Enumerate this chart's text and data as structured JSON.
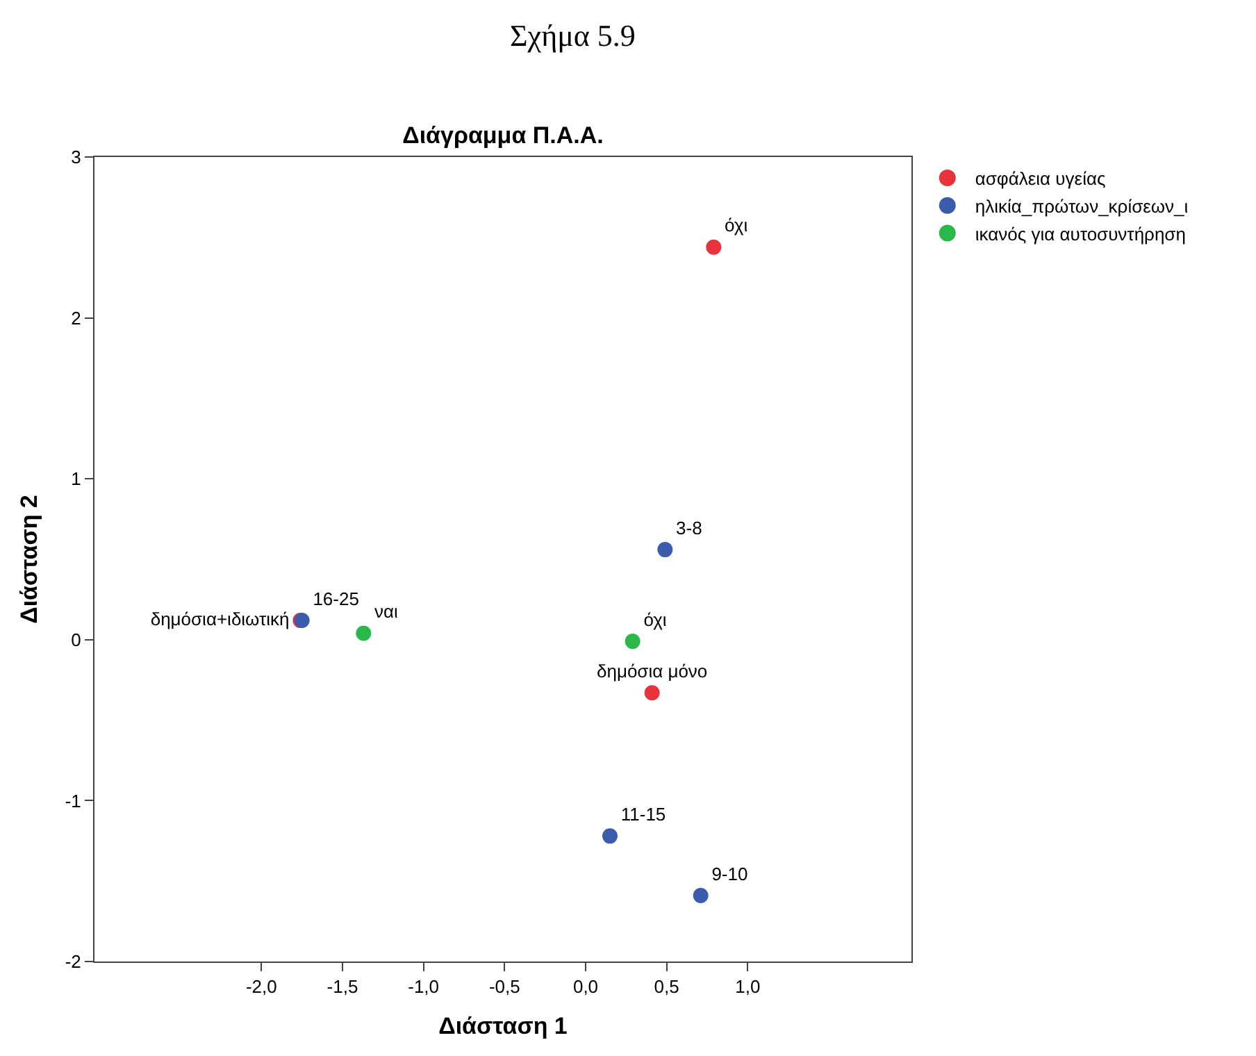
{
  "chart_data": {
    "type": "scatter",
    "title": "Διάγραμμα Π.Α.Α.",
    "xlabel": "Διάσταση 1",
    "ylabel": "Διάσταση 2",
    "annotations": [
      "Σχήμα 5.9"
    ],
    "series": [
      {
        "name": "ασφάλεια υγείας",
        "color": "#e8323c",
        "x": [
          0.79,
          0.41,
          -1.76
        ],
        "values": [
          2.44,
          -0.33,
          0.12
        ],
        "value_labels": [
          "όχι",
          "δημόσια μόνο",
          "δημόσια+ιδιωτική"
        ]
      },
      {
        "name": "ηλικία_πρώτων_κρίσεων_ι",
        "color": "#3b5bad",
        "x": [
          -1.75,
          0.49,
          0.15,
          0.71
        ],
        "values": [
          0.12,
          0.56,
          -1.22,
          -1.59
        ],
        "value_labels": [
          "16-25",
          "3-8",
          "11-15",
          "9-10"
        ]
      },
      {
        "name": "ικανός για αυτοσυντήρηση",
        "color": "#2bb84a",
        "x": [
          -1.37,
          0.29
        ],
        "values": [
          0.04,
          -0.01
        ],
        "value_labels": [
          "ναι",
          "όχι"
        ]
      }
    ],
    "xlim": [
      -3.03,
      2.01
    ],
    "ylim": [
      -2,
      3
    ],
    "xticks": [
      {
        "value": -2,
        "label": "-2,0"
      },
      {
        "value": -1.5,
        "label": "-1,5"
      },
      {
        "value": -1,
        "label": "-1,0"
      },
      {
        "value": -0.5,
        "label": "-0,5"
      },
      {
        "value": 0,
        "label": "0,0"
      },
      {
        "value": 0.5,
        "label": "0,5"
      },
      {
        "value": 1,
        "label": "1,0"
      }
    ],
    "yticks": [
      -2,
      -1,
      0,
      1,
      2,
      3
    ],
    "legend": "top right",
    "marker": "circle"
  }
}
